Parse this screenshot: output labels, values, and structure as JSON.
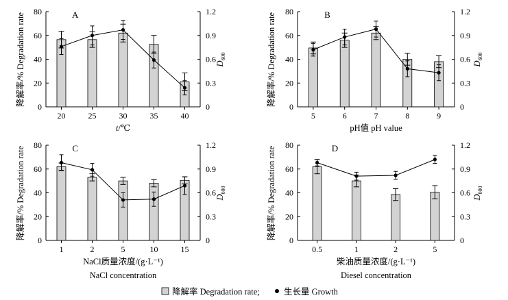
{
  "chart_data": [
    {
      "type": "bar",
      "panel_label": "A",
      "categories": [
        "20",
        "25",
        "30",
        "35",
        "40"
      ],
      "xlabel_lines": [
        "t/℃"
      ],
      "ylabel_left": "降解率/% Degradation rate",
      "ylabel_right": "D600",
      "ylim_left": [
        0,
        80
      ],
      "ylim_right": [
        0,
        1.2
      ],
      "yticks_left": [
        "0",
        "20",
        "40",
        "60",
        "80"
      ],
      "yticks_right": [
        "0",
        "0.3",
        "0.6",
        "0.9",
        "1.2"
      ],
      "bars": {
        "name": "降解率 Degradation rate",
        "values": [
          56.5,
          56.5,
          62.0,
          52.5,
          21.0
        ],
        "errors": [
          7.0,
          6.5,
          7.5,
          7.5,
          7.5
        ]
      },
      "line": {
        "name": "生长量 Growth",
        "values": [
          0.76,
          0.9,
          0.97,
          0.59,
          0.24
        ],
        "errors": [
          0.1,
          0.12,
          0.12,
          0.1,
          0.09
        ]
      }
    },
    {
      "type": "bar",
      "panel_label": "B",
      "categories": [
        "5",
        "6",
        "7",
        "8",
        "9"
      ],
      "xlabel_lines": [
        "pH值 pH value"
      ],
      "ylabel_left": "降解率/% Degradation rate",
      "ylabel_right": "D600",
      "ylim_left": [
        0,
        80
      ],
      "ylim_right": [
        0,
        1.2
      ],
      "yticks_left": [
        "0",
        "20",
        "40",
        "60",
        "80"
      ],
      "yticks_right": [
        "0",
        "0.3",
        "0.6",
        "0.9",
        "1.2"
      ],
      "bars": {
        "name": "降解率 Degradation rate",
        "values": [
          49.5,
          56.0,
          62.0,
          40.0,
          38.0
        ],
        "errors": [
          5.0,
          6.0,
          5.5,
          5.0,
          5.0
        ]
      },
      "line": {
        "name": "生长量 Growth",
        "values": [
          0.72,
          0.88,
          0.98,
          0.48,
          0.43
        ],
        "errors": [
          0.08,
          0.1,
          0.1,
          0.1,
          0.1
        ]
      }
    },
    {
      "type": "bar",
      "panel_label": "C",
      "categories": [
        "1",
        "2",
        "5",
        "10",
        "15"
      ],
      "xlabel_lines": [
        "NaCl质量浓度/(g·L⁻¹)",
        "NaCl concentration"
      ],
      "ylabel_left": "降解率/% Degradation rate",
      "ylabel_right": "D600",
      "ylim_left": [
        0,
        80
      ],
      "ylim_right": [
        0,
        1.2
      ],
      "yticks_left": [
        "0",
        "20",
        "40",
        "60",
        "80"
      ],
      "yticks_right": [
        "0",
        "0.3",
        "0.6",
        "0.9",
        "1.2"
      ],
      "bars": {
        "name": "降解率 Degradation rate",
        "values": [
          62.0,
          53.0,
          50.0,
          48.0,
          50.5
        ],
        "errors": [
          3.0,
          3.0,
          3.0,
          3.0,
          3.0
        ]
      },
      "line": {
        "name": "生长量 Growth",
        "values": [
          0.98,
          0.89,
          0.51,
          0.52,
          0.69
        ],
        "errors": [
          0.1,
          0.08,
          0.09,
          0.09,
          0.11
        ]
      }
    },
    {
      "type": "bar",
      "panel_label": "D",
      "categories": [
        "0.5",
        "1",
        "2",
        "5"
      ],
      "xlabel_lines": [
        "柴油质量浓度/(g·L⁻¹)",
        "Diesel concentration"
      ],
      "ylabel_left": "降解率/% Degradation rate",
      "ylabel_right": "D600",
      "ylim_left": [
        0,
        80
      ],
      "ylim_right": [
        0,
        1.2
      ],
      "yticks_left": [
        "0",
        "20",
        "40",
        "60",
        "80"
      ],
      "yticks_right": [
        "0",
        "0.3",
        "0.6",
        "0.9",
        "1.2"
      ],
      "bars": {
        "name": "降解率 Degradation rate",
        "values": [
          62.0,
          50.0,
          38.5,
          40.5
        ],
        "errors": [
          6.0,
          5.0,
          5.0,
          5.5
        ]
      },
      "line": {
        "name": "生长量 Growth",
        "values": [
          0.98,
          0.81,
          0.82,
          1.02
        ],
        "errors": [
          0.04,
          0.05,
          0.05,
          0.05
        ]
      }
    }
  ],
  "legend": {
    "bar_label": "降解率 Degradation rate;",
    "line_label": "生长量 Growth"
  }
}
